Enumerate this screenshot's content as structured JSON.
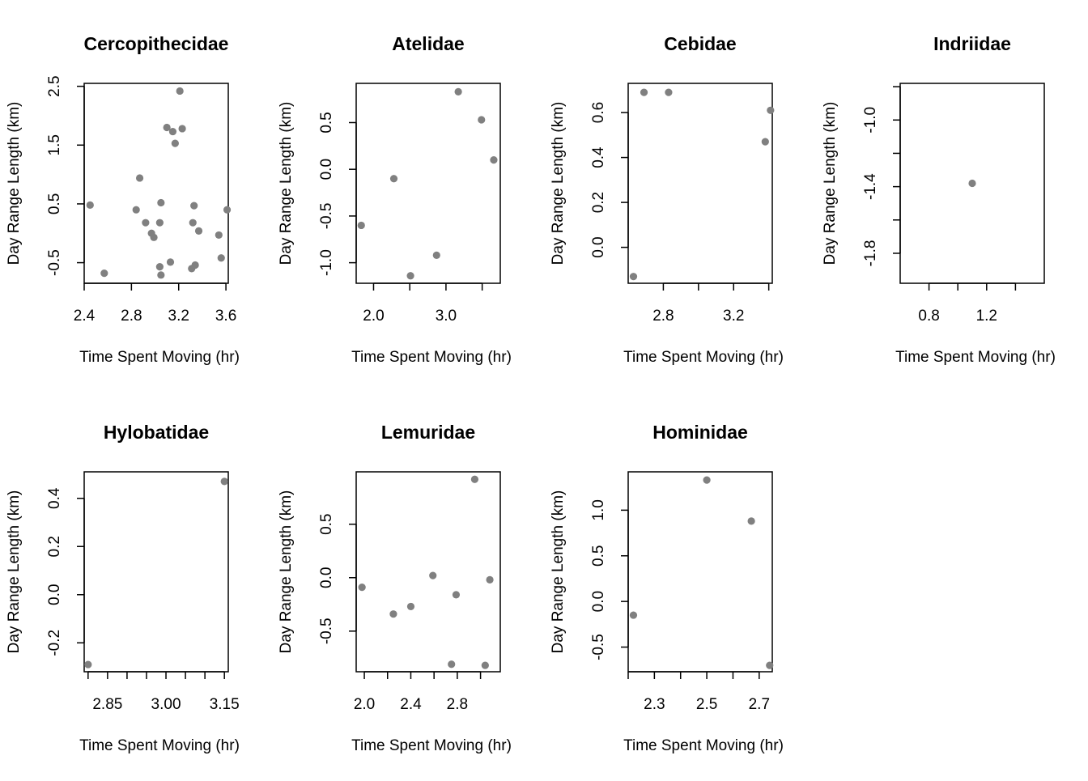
{
  "chart_data": [
    {
      "type": "scatter",
      "title": "Cercopithecidae",
      "xlabel": "Time Spent Moving (hr)",
      "ylabel": "Day Range Length (km)",
      "xlim": [
        2.4,
        3.62
      ],
      "ylim": [
        -0.85,
        2.55
      ],
      "xticks": [
        2.4,
        2.8,
        3.2,
        3.6
      ],
      "xtick_labels": [
        "2.4",
        "2.8",
        "3.2",
        "3.6"
      ],
      "yticks": [
        -0.5,
        0.5,
        1.5,
        2.5
      ],
      "ytick_labels": [
        "-0.5",
        "0.5",
        "1.5",
        "2.5"
      ],
      "points": [
        {
          "x": 2.45,
          "y": 0.48
        },
        {
          "x": 2.57,
          "y": -0.68
        },
        {
          "x": 2.84,
          "y": 0.4
        },
        {
          "x": 2.87,
          "y": 0.94
        },
        {
          "x": 2.92,
          "y": 0.18
        },
        {
          "x": 2.97,
          "y": 0.0
        },
        {
          "x": 2.99,
          "y": -0.07
        },
        {
          "x": 3.04,
          "y": 0.18
        },
        {
          "x": 3.04,
          "y": -0.57
        },
        {
          "x": 3.05,
          "y": 0.52
        },
        {
          "x": 3.05,
          "y": -0.71
        },
        {
          "x": 3.1,
          "y": 1.8
        },
        {
          "x": 3.13,
          "y": -0.49
        },
        {
          "x": 3.15,
          "y": 1.73
        },
        {
          "x": 3.17,
          "y": 1.53
        },
        {
          "x": 3.21,
          "y": 2.42
        },
        {
          "x": 3.23,
          "y": 1.78
        },
        {
          "x": 3.31,
          "y": -0.6
        },
        {
          "x": 3.32,
          "y": 0.18
        },
        {
          "x": 3.33,
          "y": 0.47
        },
        {
          "x": 3.34,
          "y": -0.54
        },
        {
          "x": 3.37,
          "y": 0.04
        },
        {
          "x": 3.54,
          "y": -0.03
        },
        {
          "x": 3.56,
          "y": -0.42
        },
        {
          "x": 3.61,
          "y": 0.4
        }
      ]
    },
    {
      "type": "scatter",
      "title": "Atelidae",
      "xlabel": "Time Spent Moving (hr)",
      "ylabel": "Day Range Length (km)",
      "xlim": [
        1.76,
        3.75
      ],
      "ylim": [
        -1.22,
        0.92
      ],
      "xticks": [
        2.0,
        2.5,
        3.0,
        3.5
      ],
      "xtick_labels": [
        "2.0",
        "",
        "3.0",
        ""
      ],
      "yticks": [
        -1.0,
        -0.5,
        0.0,
        0.5
      ],
      "ytick_labels": [
        "-1.0",
        "-0.5",
        "0.0",
        "0.5"
      ],
      "points": [
        {
          "x": 1.83,
          "y": -0.6
        },
        {
          "x": 2.28,
          "y": -0.1
        },
        {
          "x": 2.51,
          "y": -1.14
        },
        {
          "x": 2.87,
          "y": -0.92
        },
        {
          "x": 3.17,
          "y": 0.83
        },
        {
          "x": 3.49,
          "y": 0.53
        },
        {
          "x": 3.66,
          "y": 0.1
        }
      ]
    },
    {
      "type": "scatter",
      "title": "Cebidae",
      "xlabel": "Time Spent Moving (hr)",
      "ylabel": "Day Range Length (km)",
      "xlim": [
        2.6,
        3.42
      ],
      "ylim": [
        -0.16,
        0.73
      ],
      "xticks": [
        2.8,
        3.0,
        3.2,
        3.4
      ],
      "xtick_labels": [
        "2.8",
        "",
        "3.2",
        ""
      ],
      "yticks": [
        0.0,
        0.2,
        0.4,
        0.6
      ],
      "ytick_labels": [
        "0.0",
        "0.2",
        "0.4",
        "0.6"
      ],
      "points": [
        {
          "x": 2.63,
          "y": -0.13
        },
        {
          "x": 2.69,
          "y": 0.69
        },
        {
          "x": 2.83,
          "y": 0.69
        },
        {
          "x": 3.38,
          "y": 0.47
        },
        {
          "x": 3.41,
          "y": 0.61
        }
      ]
    },
    {
      "type": "scatter",
      "title": "Indriidae",
      "xlabel": "Time Spent Moving (hr)",
      "ylabel": "Day Range Length (km)",
      "xlim": [
        0.6,
        1.6
      ],
      "ylim": [
        -1.98,
        -0.78
      ],
      "xticks": [
        0.8,
        1.0,
        1.2,
        1.4
      ],
      "xtick_labels": [
        "0.8",
        "",
        "1.2",
        ""
      ],
      "yticks": [
        -1.8,
        -1.6,
        -1.4,
        -1.2,
        -1.0,
        -0.8
      ],
      "ytick_labels": [
        "-1.8",
        "",
        "-1.4",
        "",
        "-1.0",
        ""
      ],
      "points": [
        {
          "x": 1.1,
          "y": -1.38
        }
      ]
    },
    {
      "type": "scatter",
      "title": "Hylobatidae",
      "xlabel": "Time Spent Moving (hr)",
      "ylabel": "Day Range Length (km)",
      "xlim": [
        2.79,
        3.16
      ],
      "ylim": [
        -0.32,
        0.51
      ],
      "xticks": [
        2.8,
        2.85,
        2.9,
        2.95,
        3.0,
        3.05,
        3.1,
        3.15
      ],
      "xtick_labels": [
        "",
        "2.85",
        "",
        "",
        "3.00",
        "",
        "",
        "3.15"
      ],
      "yticks": [
        -0.2,
        0.0,
        0.2,
        0.4
      ],
      "ytick_labels": [
        "-0.2",
        "0.0",
        "0.2",
        "0.4"
      ],
      "points": [
        {
          "x": 2.8,
          "y": -0.29
        },
        {
          "x": 3.15,
          "y": 0.47
        }
      ]
    },
    {
      "type": "scatter",
      "title": "Lemuridae",
      "xlabel": "Time Spent Moving (hr)",
      "ylabel": "Day Range Length (km)",
      "xlim": [
        1.93,
        3.17
      ],
      "ylim": [
        -0.88,
        0.99
      ],
      "xticks": [
        2.0,
        2.2,
        2.4,
        2.6,
        2.8,
        3.0
      ],
      "xtick_labels": [
        "2.0",
        "",
        "2.4",
        "",
        "2.8",
        ""
      ],
      "yticks": [
        -0.5,
        0.0,
        0.5
      ],
      "ytick_labels": [
        "-0.5",
        "0.0",
        "0.5"
      ],
      "points": [
        {
          "x": 1.98,
          "y": -0.09
        },
        {
          "x": 2.25,
          "y": -0.34
        },
        {
          "x": 2.4,
          "y": -0.27
        },
        {
          "x": 2.59,
          "y": 0.02
        },
        {
          "x": 2.75,
          "y": -0.81
        },
        {
          "x": 2.79,
          "y": -0.16
        },
        {
          "x": 2.95,
          "y": 0.92
        },
        {
          "x": 3.04,
          "y": -0.82
        },
        {
          "x": 3.08,
          "y": -0.02
        }
      ]
    },
    {
      "type": "scatter",
      "title": "Hominidae",
      "xlabel": "Time Spent Moving (hr)",
      "ylabel": "Day Range Length (km)",
      "xlim": [
        2.2,
        2.75
      ],
      "ylim": [
        -0.77,
        1.42
      ],
      "xticks": [
        2.2,
        2.3,
        2.4,
        2.5,
        2.6,
        2.7
      ],
      "xtick_labels": [
        "",
        "2.3",
        "",
        "2.5",
        "",
        "2.7"
      ],
      "yticks": [
        -0.5,
        0.0,
        0.5,
        1.0
      ],
      "ytick_labels": [
        "-0.5",
        "0.0",
        "0.5",
        "1.0"
      ],
      "points": [
        {
          "x": 2.22,
          "y": -0.15
        },
        {
          "x": 2.5,
          "y": 1.33
        },
        {
          "x": 2.67,
          "y": 0.88
        },
        {
          "x": 2.74,
          "y": -0.7
        }
      ]
    }
  ],
  "style": {
    "point_color": "#808080",
    "axis_color": "#000000"
  }
}
